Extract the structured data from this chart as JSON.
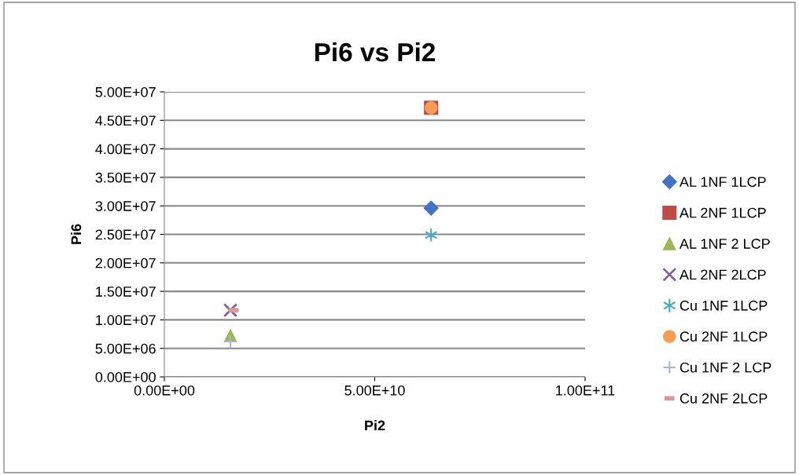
{
  "chart_data": {
    "type": "scatter",
    "title": "Pi6 vs Pi2",
    "xlabel": "Pi2",
    "ylabel": "Pi6",
    "xlim": [
      0,
      100000000000
    ],
    "xticks": [
      {
        "value": 0,
        "label": "0.00E+00"
      },
      {
        "value": 50000000000,
        "label": "5.00E+10"
      },
      {
        "value": 100000000000,
        "label": "1.00E+11"
      }
    ],
    "ylim": [
      0,
      50000000
    ],
    "yticks": [
      {
        "value": 0,
        "label": "0.00E+00"
      },
      {
        "value": 5000000,
        "label": "5.00E+06"
      },
      {
        "value": 10000000,
        "label": "1.00E+07"
      },
      {
        "value": 15000000,
        "label": "1.50E+07"
      },
      {
        "value": 20000000,
        "label": "2.00E+07"
      },
      {
        "value": 25000000,
        "label": "2.50E+07"
      },
      {
        "value": 30000000,
        "label": "3.00E+07"
      },
      {
        "value": 35000000,
        "label": "3.50E+07"
      },
      {
        "value": 40000000,
        "label": "4.00E+07"
      },
      {
        "value": 45000000,
        "label": "4.50E+07"
      },
      {
        "value": 50000000,
        "label": "5.00E+07"
      }
    ],
    "grid": "y",
    "legend": "right",
    "series": [
      {
        "name": "AL 1NF 1LCP",
        "color": "#4472c4",
        "marker": "diamond",
        "x": [
          63400000000
        ],
        "values": [
          29600000
        ]
      },
      {
        "name": "AL 2NF 1LCP",
        "color": "#be4b48",
        "marker": "square",
        "x": [
          63400000000
        ],
        "values": [
          47200000
        ]
      },
      {
        "name": "AL 1NF 2 LCP",
        "color": "#98b954",
        "marker": "triangle",
        "x": [
          15700000000
        ],
        "values": [
          7200000
        ]
      },
      {
        "name": "AL 2NF 2LCP",
        "color": "#7d60a0",
        "marker": "cross",
        "x": [
          15700000000
        ],
        "values": [
          11700000
        ]
      },
      {
        "name": "Cu 1NF 1LCP",
        "color": "#46aac5",
        "marker": "cross",
        "x": [
          63400000000
        ],
        "values": [
          24900000
        ]
      },
      {
        "name": "Cu 2NF 1LCP",
        "color": "#f59d56",
        "marker": "circle",
        "x": [
          63400000000
        ],
        "values": [
          47200000
        ]
      },
      {
        "name": "Cu 1NF 2 LCP",
        "color": "#a5b6d8",
        "marker": "plus",
        "x": [
          15700000000
        ],
        "values": [
          6200000
        ]
      },
      {
        "name": "Cu 2NF 2LCP",
        "color": "#d99795",
        "x": [
          16500000000
        ],
        "values": [
          11700000
        ]
      }
    ]
  }
}
